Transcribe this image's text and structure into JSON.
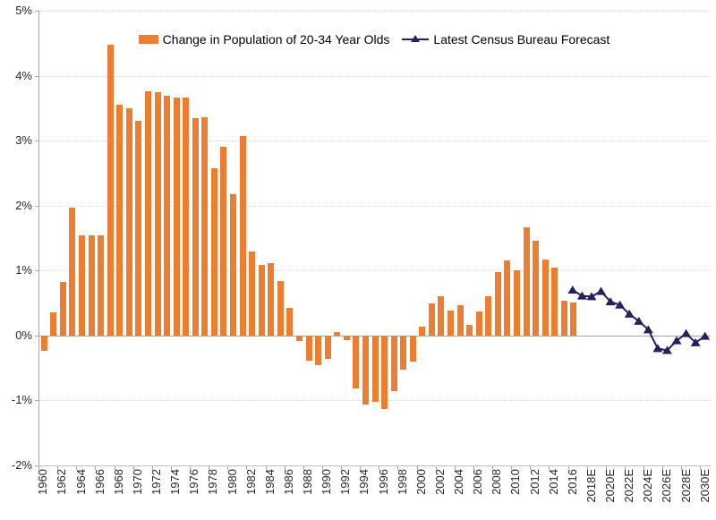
{
  "legend": {
    "bars_label": "Change in Population of 20-34 Year Olds",
    "line_label": "Latest Census Bureau Forecast"
  },
  "colors": {
    "bar": "#ED7D31",
    "line": "#2A1E5E",
    "gridline": "#D9D9D9",
    "axis": "#A6A6A6",
    "text": "#262626"
  },
  "chart_data": {
    "type": "bar",
    "subtype": "combo-bar-plus-forecast-line",
    "title": "",
    "xlabel": "",
    "ylabel": "",
    "ylim": [
      -2,
      5
    ],
    "y_tick_labels": [
      "5%",
      "4%",
      "3%",
      "2%",
      "1%",
      "0%",
      "-1%",
      "-2%"
    ],
    "x_range_years": [
      1960,
      2030
    ],
    "x_tick_labels": [
      "1960",
      "1962",
      "1964",
      "1966",
      "1968",
      "1970",
      "1972",
      "1974",
      "1976",
      "1978",
      "1980",
      "1982",
      "1984",
      "1986",
      "1988",
      "1990",
      "1992",
      "1994",
      "1996",
      "1998",
      "2000",
      "2002",
      "2004",
      "2006",
      "2008",
      "2010",
      "2012",
      "2014",
      "2016",
      "2018E",
      "2020E",
      "2022E",
      "2024E",
      "2026E",
      "2028E",
      "2030E"
    ],
    "grid": "horizontal-dotted",
    "legend_position": "top",
    "series": [
      {
        "name": "Change in Population of 20-34 Year Olds",
        "type": "bar",
        "color": "#ED7D31",
        "start_year": 1960,
        "values": [
          -0.23,
          0.35,
          0.83,
          1.97,
          1.54,
          1.54,
          1.54,
          4.47,
          3.56,
          3.5,
          3.3,
          3.76,
          3.74,
          3.69,
          3.66,
          3.67,
          3.34,
          3.36,
          2.58,
          2.91,
          2.18,
          3.07,
          1.3,
          1.09,
          1.12,
          0.84,
          0.42,
          -0.08,
          -0.39,
          -0.45,
          -0.36,
          0.05,
          -0.07,
          -0.82,
          -1.06,
          -1.02,
          -1.13,
          -0.85,
          -0.52,
          -0.4,
          0.14,
          0.49,
          0.61,
          0.39,
          0.47,
          0.16,
          0.37,
          0.6,
          0.98,
          1.16,
          1.0,
          1.67,
          1.46,
          1.17,
          1.04,
          0.54,
          0.51
        ]
      },
      {
        "name": "Latest Census Bureau Forecast",
        "type": "line",
        "marker": "triangle",
        "color": "#2A1E5E",
        "start_year": 2016,
        "values": [
          0.7,
          0.61,
          0.6,
          0.68,
          0.52,
          0.47,
          0.33,
          0.22,
          0.09,
          -0.2,
          -0.23,
          -0.08,
          0.03,
          -0.11,
          -0.01
        ]
      }
    ]
  }
}
